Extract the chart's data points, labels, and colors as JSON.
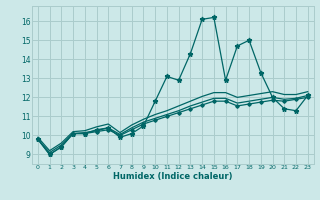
{
  "xlabel": "Humidex (Indice chaleur)",
  "bg_color": "#cce8e8",
  "grid_color": "#aacccc",
  "line_color": "#006666",
  "xlim": [
    -0.5,
    23.5
  ],
  "ylim": [
    8.5,
    16.8
  ],
  "xticks": [
    0,
    1,
    2,
    3,
    4,
    5,
    6,
    7,
    8,
    9,
    10,
    11,
    12,
    13,
    14,
    15,
    16,
    17,
    18,
    19,
    20,
    21,
    22,
    23
  ],
  "yticks": [
    9,
    10,
    11,
    12,
    13,
    14,
    15,
    16
  ],
  "line1_x": [
    0,
    1,
    2,
    3,
    4,
    5,
    6,
    7,
    8,
    9,
    10,
    11,
    12,
    13,
    14,
    15,
    16,
    17,
    18,
    19,
    20,
    21,
    22,
    23
  ],
  "line1_y": [
    9.8,
    9.0,
    9.4,
    10.1,
    10.1,
    10.3,
    10.4,
    9.9,
    10.1,
    10.5,
    11.8,
    13.1,
    12.9,
    14.3,
    16.1,
    16.2,
    12.9,
    14.7,
    15.0,
    13.3,
    12.0,
    11.4,
    11.3,
    12.1
  ],
  "line2_x": [
    0,
    1,
    2,
    3,
    4,
    5,
    6,
    7,
    8,
    9,
    10,
    11,
    12,
    13,
    14,
    15,
    16,
    17,
    18,
    19,
    20,
    21,
    22,
    23
  ],
  "line2_y": [
    9.8,
    9.0,
    9.4,
    10.1,
    10.1,
    10.2,
    10.3,
    10.0,
    10.3,
    10.6,
    10.8,
    11.0,
    11.2,
    11.4,
    11.6,
    11.8,
    11.8,
    11.55,
    11.65,
    11.75,
    11.85,
    11.8,
    11.9,
    12.0
  ],
  "line3_x": [
    0,
    1,
    2,
    3,
    4,
    5,
    6,
    7,
    8,
    9,
    10,
    11,
    12,
    13,
    14,
    15,
    16,
    17,
    18,
    19,
    20,
    21,
    22,
    23
  ],
  "line3_y": [
    9.8,
    9.1,
    9.5,
    10.1,
    10.15,
    10.25,
    10.4,
    10.05,
    10.4,
    10.7,
    10.9,
    11.1,
    11.3,
    11.55,
    11.75,
    11.95,
    11.95,
    11.7,
    11.8,
    11.9,
    12.0,
    11.9,
    11.95,
    12.1
  ],
  "line4_x": [
    0,
    1,
    2,
    3,
    4,
    5,
    6,
    7,
    8,
    9,
    10,
    11,
    12,
    13,
    14,
    15,
    16,
    17,
    18,
    19,
    20,
    21,
    22,
    23
  ],
  "line4_y": [
    9.9,
    9.2,
    9.6,
    10.2,
    10.25,
    10.45,
    10.6,
    10.15,
    10.55,
    10.85,
    11.1,
    11.3,
    11.55,
    11.8,
    12.05,
    12.25,
    12.25,
    12.0,
    12.1,
    12.2,
    12.3,
    12.15,
    12.15,
    12.3
  ]
}
